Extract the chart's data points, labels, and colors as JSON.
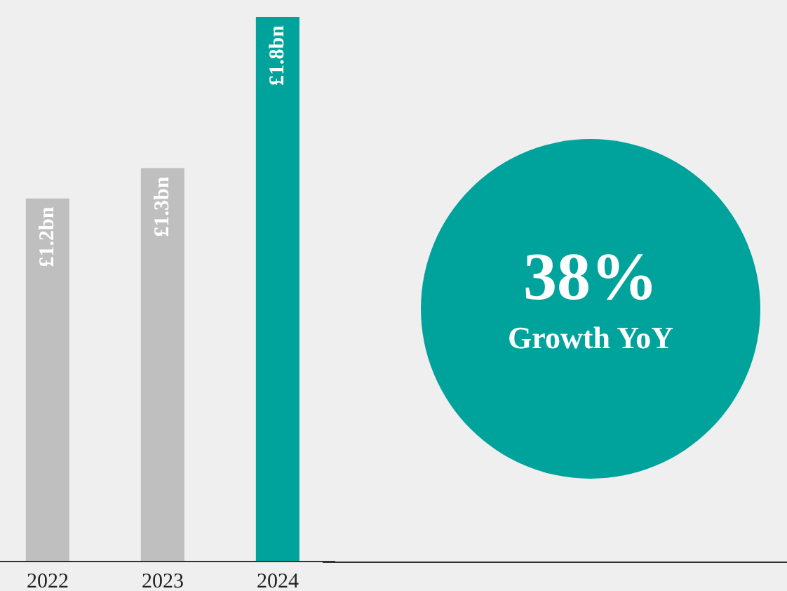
{
  "chart_data": {
    "type": "bar",
    "categories": [
      "2022",
      "2023",
      "2024"
    ],
    "values": [
      1.2,
      1.3,
      1.8
    ],
    "value_labels": [
      "£1.2bn",
      "£1.3bn",
      "£1.8bn"
    ],
    "colors": [
      "#bebfbe",
      "#bebfbe",
      "#00a39b"
    ],
    "relative": false,
    "ylim": [
      0,
      1.8
    ],
    "annotations": [
      "38%",
      "Growth YoY"
    ]
  }
}
